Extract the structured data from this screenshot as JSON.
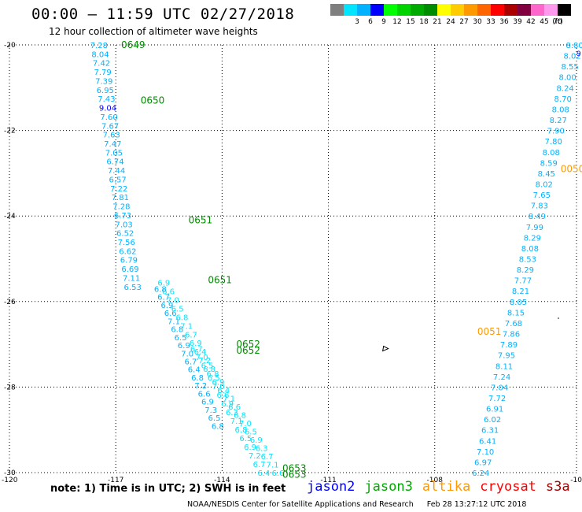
{
  "title": "00:00 – 11:59 UTC 02/27/2018",
  "subtitle": "12 hour collection of altimeter wave heights",
  "color_scale": {
    "unit_label": "(ft)",
    "bins": [
      {
        "label": "",
        "color": "#7f7f7f"
      },
      {
        "label": "3",
        "color": "#00e5ff"
      },
      {
        "label": "6",
        "color": "#00b2ff"
      },
      {
        "label": "9",
        "color": "#0000ff"
      },
      {
        "label": "12",
        "color": "#00ff00"
      },
      {
        "label": "15",
        "color": "#00d400"
      },
      {
        "label": "18",
        "color": "#00aa00"
      },
      {
        "label": "21",
        "color": "#008c00"
      },
      {
        "label": "24",
        "color": "#ffff00"
      },
      {
        "label": "27",
        "color": "#ffcc00"
      },
      {
        "label": "30",
        "color": "#ff9900"
      },
      {
        "label": "33",
        "color": "#ff6600"
      },
      {
        "label": "36",
        "color": "#ff0000"
      },
      {
        "label": "39",
        "color": "#aa0000"
      },
      {
        "label": "42",
        "color": "#800040"
      },
      {
        "label": "45",
        "color": "#ff66cc"
      },
      {
        "label": "70",
        "color": "#ff99ee"
      },
      {
        "label": "",
        "color": "#000000"
      }
    ]
  },
  "map": {
    "lon_range": [
      -120,
      -104
    ],
    "lat_range": [
      -30,
      -20
    ],
    "lat_ticks": [
      {
        "value": -20,
        "label": "-20"
      },
      {
        "value": -22,
        "label": "-22"
      },
      {
        "value": -24,
        "label": "-24"
      },
      {
        "value": -26,
        "label": "-26"
      },
      {
        "value": -28,
        "label": "-28"
      },
      {
        "value": -30,
        "label": "-30"
      }
    ],
    "lon_ticks": [
      {
        "value": -120,
        "label": "-120"
      },
      {
        "value": -117,
        "label": "-117"
      },
      {
        "value": -114,
        "label": "-114"
      },
      {
        "value": -111,
        "label": "-111"
      },
      {
        "value": -108,
        "label": "-108"
      },
      {
        "value": -104,
        "label": "-10"
      }
    ],
    "grid": true
  },
  "time_labels": [
    {
      "text": "0649",
      "lon": -116.85,
      "lat": -20.0,
      "color": "#008c00"
    },
    {
      "text": "0650",
      "lon": -116.3,
      "lat": -21.3,
      "color": "#008c00"
    },
    {
      "text": "0651",
      "lon": -114.95,
      "lat": -24.1,
      "color": "#008c00"
    },
    {
      "text": "0651",
      "lon": -114.4,
      "lat": -25.5,
      "color": "#008c00"
    },
    {
      "text": "0652",
      "lon": -113.6,
      "lat": -27.0,
      "color": "#008c00"
    },
    {
      "text": "0652",
      "lon": -113.6,
      "lat": -27.15,
      "color": "#008c00"
    },
    {
      "text": "0653",
      "lon": -112.3,
      "lat": -29.9,
      "color": "#008c00"
    },
    {
      "text": "0653",
      "lon": -112.3,
      "lat": -30.05,
      "color": "#008c00"
    },
    {
      "text": "0050",
      "lon": -104.45,
      "lat": -22.9,
      "color": "#ff9900"
    },
    {
      "text": "0051",
      "lon": -106.8,
      "lat": -26.7,
      "color": "#ff9900"
    }
  ],
  "tracks": [
    {
      "start": {
        "lon": -117.72,
        "lat": -20.0
      },
      "end": {
        "lon": -116.77,
        "lat": -25.65
      },
      "color": "#00b2ff",
      "values": [
        "7.28",
        "8.04",
        "7.42",
        "7.79",
        "7.39",
        "6.95",
        "7.43",
        "9.04",
        "7.60",
        "7.67",
        "7.63",
        "7.47",
        "7.05",
        "6.74",
        "7.44",
        "6.57",
        "7.22",
        "7.81",
        "7.28",
        "6.73",
        "7.03",
        "6.52",
        "7.56",
        "6.62",
        "6.79",
        "6.69",
        "7.11",
        "6.53"
      ]
    },
    {
      "start": {
        "lon": -115.92,
        "lat": -25.7
      },
      "end": {
        "lon": -114.3,
        "lat": -28.9
      },
      "color": "#00b2ff",
      "values": [
        "6.8",
        "6.7",
        "6.9",
        "6.6",
        "7.1",
        "6.8",
        "6.5",
        "6.9",
        "7.0",
        "6.7",
        "6.4",
        "6.8",
        "7.2",
        "6.6",
        "6.9",
        "7.3",
        "6.5",
        "6.8"
      ]
    },
    {
      "start": {
        "lon": -115.82,
        "lat": -25.55
      },
      "end": {
        "lon": -113.0,
        "lat": -30.0
      },
      "color": "#00e5ff",
      "values": [
        "6.9",
        "6.6",
        "7.0",
        "6.5",
        "6.8",
        "7.1",
        "6.7",
        "6.9",
        "6.4",
        "7.2",
        "6.8",
        "6.5",
        "7.0",
        "6.6",
        "6.9",
        "6.3",
        "7.1",
        "6.8",
        "6.5",
        "6.9",
        "7.2",
        "6.7",
        "6.4"
      ]
    },
    {
      "start": {
        "lon": -114.9,
        "lat": -27.1
      },
      "end": {
        "lon": -112.6,
        "lat": -30.0
      },
      "color": "#00e5ff",
      "values": [
        "6.7",
        "7.0",
        "6.5",
        "6.8",
        "6.9",
        "6.4",
        "7.1",
        "6.6",
        "6.8",
        "7.0",
        "6.5",
        "6.9",
        "6.3",
        "6.7",
        "7.1",
        "6.6"
      ]
    },
    {
      "start": {
        "lon": -104.3,
        "lat": -20.0
      },
      "end": {
        "lon": -106.95,
        "lat": -30.0
      },
      "color": "#00b2ff",
      "values": [
        "8.80",
        "8.02",
        "8.55",
        "8.00",
        "8.24",
        "8.70",
        "8.08",
        "8.27",
        "7.90",
        "7.80",
        "8.08",
        "8.59",
        "8.45",
        "8.02",
        "7.65",
        "7.83",
        "8.49",
        "7.99",
        "8.29",
        "8.08",
        "8.53",
        "8.29",
        "7.77",
        "8.21",
        "8.05",
        "8.15",
        "7.68",
        "7.86",
        "7.89",
        "7.95",
        "8.11",
        "7.24",
        "7.04",
        "7.72",
        "6.91",
        "6.02",
        "6.31",
        "6.41",
        "7.10",
        "6.97",
        "6.24"
      ]
    }
  ],
  "edge_label": {
    "text": "9",
    "color": "#0000ff"
  },
  "island_marker": {
    "lon": -109.4,
    "lat": -27.1
  },
  "note": "note: 1) Time is in UTC; 2) SWH is in feet",
  "satellites": [
    {
      "name": "jason2",
      "color": "#0000ff"
    },
    {
      "name": "jason3",
      "color": "#00aa00"
    },
    {
      "name": "altika",
      "color": "#ff9900"
    },
    {
      "name": "cryosat",
      "color": "#ff0000"
    },
    {
      "name": "s3a",
      "color": "#aa0000"
    }
  ],
  "credit": {
    "org": "NOAA/NESDIS Center for Satellite Applications and Research",
    "timestamp": "Feb 28 13:27:12 UTC 2018"
  }
}
